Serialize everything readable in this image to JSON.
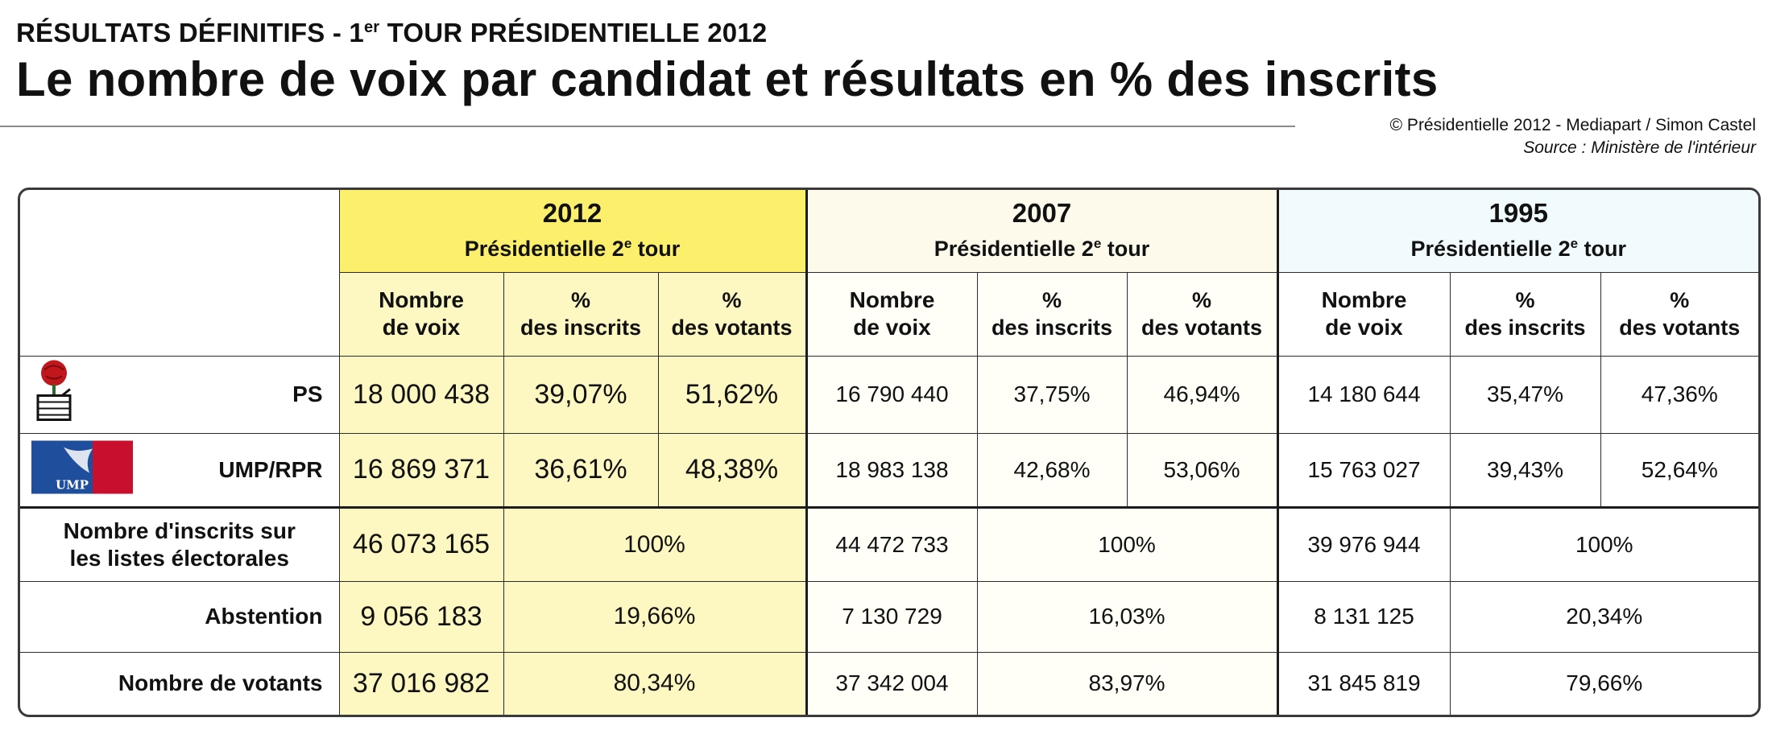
{
  "header": {
    "kicker_pre": "RÉSULTATS DÉFINITIFS - 1",
    "kicker_sup": "er",
    "kicker_post": " TOUR PRÉSIDENTIELLE 2012",
    "title": "Le nombre de voix par candidat et résultats en % des inscrits",
    "credit": "© Présidentielle 2012 - Mediapart / Simon Castel",
    "source": "Source : Ministère de l'intérieur"
  },
  "logos": {
    "ps_icon": "rose-in-fist-icon",
    "ump_icon": "ump-logo-icon",
    "ump_text": "UMP",
    "ump_color": "#1f4e9c"
  },
  "chart_data": {
    "type": "table",
    "title": "Le nombre de voix par candidat et résultats en % des inscrits",
    "groups": [
      {
        "year": "2012",
        "label_pre": "Présidentielle 2",
        "label_sup": "e",
        "label_post": " tour"
      },
      {
        "year": "2007",
        "label_pre": "Présidentielle 2",
        "label_sup": "e",
        "label_post": " tour"
      },
      {
        "year": "1995",
        "label_pre": "Présidentielle 2",
        "label_sup": "e",
        "label_post": " tour"
      }
    ],
    "columns": [
      {
        "l1": "Nombre",
        "l2": "de voix"
      },
      {
        "l1": "%",
        "l2": "des inscrits"
      },
      {
        "l1": "%",
        "l2": "des votants"
      }
    ],
    "rows": [
      {
        "label": "PS",
        "cells": [
          "18 000 438",
          "39,07%",
          "51,62%",
          "16 790 440",
          "37,75%",
          "46,94%",
          "14 180 644",
          "35,47%",
          "47,36%"
        ]
      },
      {
        "label": "UMP/RPR",
        "cells": [
          "16 869 371",
          "36,61%",
          "48,38%",
          "18 983 138",
          "42,68%",
          "53,06%",
          "15 763 027",
          "39,43%",
          "52,64%"
        ]
      }
    ],
    "summary_rows": [
      {
        "label_l1": "Nombre d'inscrits sur",
        "label_l2": "les listes électorales",
        "cells": [
          "46 073 165",
          "100%",
          "44 472 733",
          "100%",
          "39 976 944",
          "100%"
        ]
      },
      {
        "label": "Abstention",
        "cells": [
          "9 056 183",
          "19,66%",
          "7 130 729",
          "16,03%",
          "8 131 125",
          "20,34%"
        ]
      },
      {
        "label": "Nombre de votants",
        "cells": [
          "37 016 982",
          "80,34%",
          "37 342 004",
          "83,97%",
          "31 845 819",
          "79,66%"
        ]
      }
    ],
    "colors": {
      "2012_header": "#fbef6c",
      "2012_body": "#fdf8c2",
      "1995_header": "#f1fafc"
    }
  }
}
